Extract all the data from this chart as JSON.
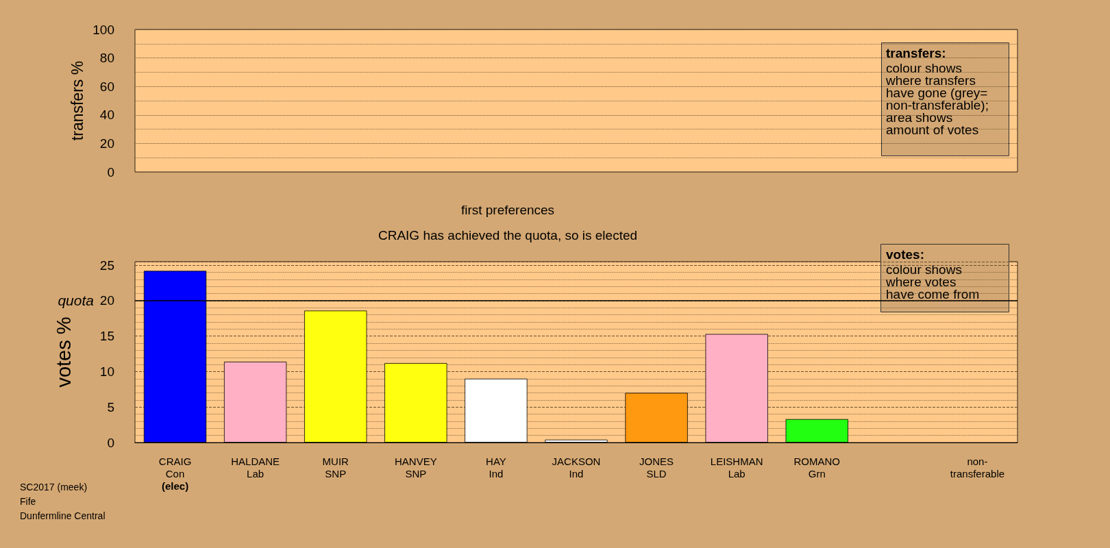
{
  "chart_data": [
    {
      "type": "bar",
      "ylabel": "transfers %",
      "categories": [
        null,
        null,
        null,
        null,
        null,
        null,
        null,
        null,
        null,
        null,
        null
      ],
      "values": [
        null,
        null,
        null,
        null,
        null,
        null,
        null,
        null,
        null,
        null,
        null
      ],
      "ylim": [
        0,
        100
      ],
      "yticks": [
        0,
        20,
        40,
        60,
        80,
        100
      ],
      "grid": true,
      "tick_labels": "y",
      "annotations": [
        "transfers:\ncolour shows\nwhere transfers\nhave gone (grey=\nnon-transferable);\narea shows\namount of votes"
      ]
    },
    {
      "type": "bar",
      "title": "first preferences",
      "subtitle": "CRAIG has achieved the quota, so is elected",
      "ylabel": "votes %",
      "categories": [
        "CRAIG\nCon\n(elec)",
        "HALDANE\nLab",
        "MUIR\nSNP",
        "HANVEY\nSNP",
        "HAY\nInd",
        "JACKSON\nInd",
        "JONES\nSLD",
        "LEISHMAN\nLab",
        "ROMANO\nGrn",
        null,
        "non-\ntransferable"
      ],
      "values": [
        24.2,
        11.4,
        18.6,
        11.2,
        9.0,
        0.4,
        7.0,
        15.3,
        3.3,
        null,
        null
      ],
      "colors": [
        "#0000ff",
        "#ffb0c4",
        "#ffff10",
        "#ffff10",
        "#ffffff",
        "#ffffff",
        "#ff9910",
        "#ffb0c4",
        "#22ff11",
        null,
        null
      ],
      "ylim": [
        0,
        25.5
      ],
      "yticks": [
        0,
        5,
        10,
        15,
        20,
        25
      ],
      "grid": true,
      "ref_lines": [
        {
          "axis": "y",
          "value": 20,
          "label": "quota"
        }
      ],
      "annotations": [
        "votes:\ncolour shows\nwhere votes\nhave come from",
        "SC2017 (meek)\nFife\nDunfermline Central"
      ]
    }
  ]
}
